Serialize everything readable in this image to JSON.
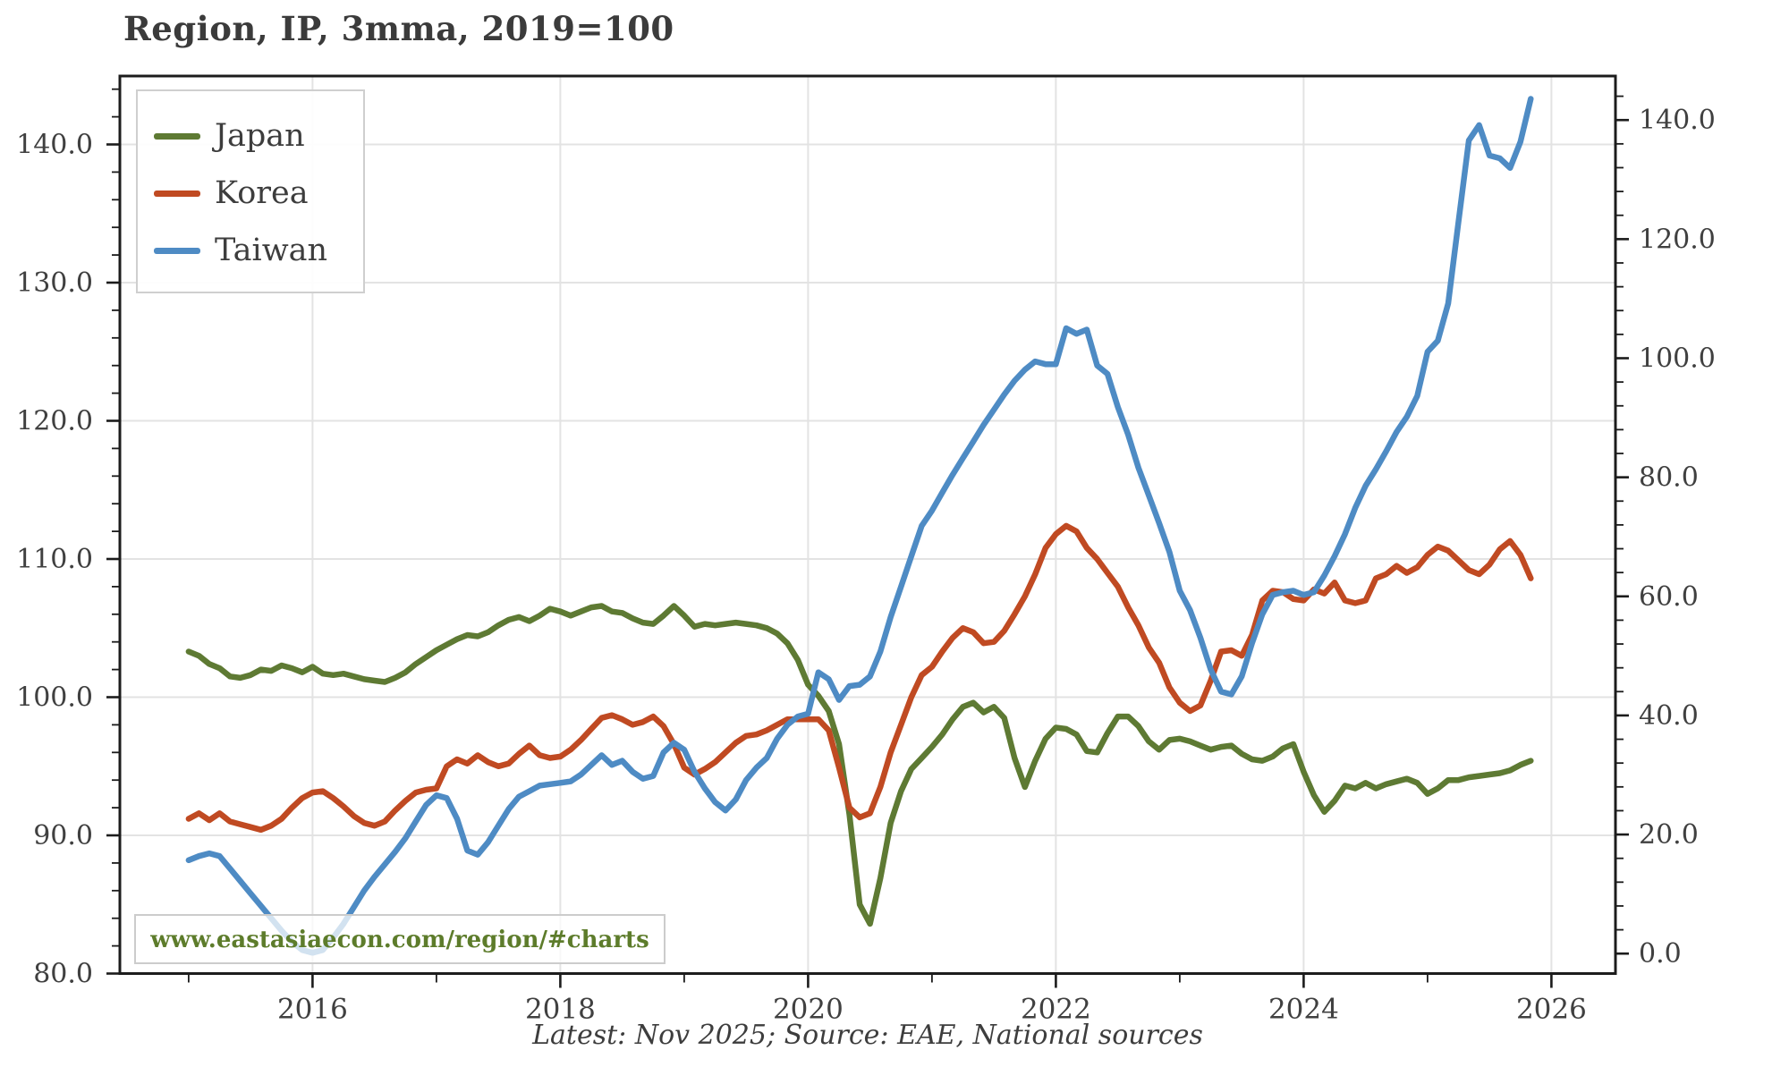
{
  "page": {
    "title": "Region, IP, 3mma, 2019=100",
    "caption": "Latest: Nov 2025; Source: EAE, National sources",
    "watermark": "www.eastasiaecon.com/region/#charts"
  },
  "colors": {
    "japan": "#5e7a33",
    "korea": "#c04a22",
    "taiwan": "#4e8bc4",
    "grid": "#e3e3e3",
    "spine": "#1c1c1c",
    "tick_text": "#404040",
    "watermark_text": "#5d7c2b"
  },
  "chart_data": {
    "type": "line",
    "title": "Region, IP, 3mma, 2019=100",
    "x_axis": {
      "major_tick_years": [
        2016,
        2018,
        2020,
        2022,
        2024,
        2026
      ],
      "major_tick_labels": [
        "2016",
        "2018",
        "2020",
        "2022",
        "2024",
        "2026"
      ],
      "minor_tick_years": [
        2015,
        2017,
        2019,
        2021,
        2023,
        2025
      ],
      "range": [
        2014.44,
        2026.55
      ]
    },
    "left_axis": {
      "ticks": [
        80,
        90,
        100,
        110,
        120,
        130,
        140
      ],
      "labels": [
        "80.0",
        "90.0",
        "100.0",
        "110.0",
        "120.0",
        "130.0",
        "140.0"
      ],
      "minor_step": 2,
      "range": [
        80,
        144.95
      ],
      "grid": true
    },
    "right_axis": {
      "ticks": [
        0,
        20,
        40,
        60,
        80,
        100,
        120,
        140
      ],
      "labels": [
        "0.0",
        "20.0",
        "40.0",
        "60.0",
        "80.0",
        "100.0",
        "120.0",
        "140.0"
      ],
      "minor_step": 4,
      "range": [
        -3.3,
        147.4
      ],
      "grid": false
    },
    "series_start": {
      "year": 2015,
      "month": 1
    },
    "frequency": "monthly",
    "last_point": "Nov 2025",
    "series": [
      {
        "name": "Japan",
        "color_key": "japan",
        "values": [
          103.3,
          103.0,
          102.4,
          102.1,
          101.5,
          101.4,
          101.6,
          102.0,
          101.9,
          102.3,
          102.1,
          101.8,
          102.2,
          101.7,
          101.6,
          101.7,
          101.5,
          101.3,
          101.2,
          101.1,
          101.4,
          101.8,
          102.4,
          102.9,
          103.4,
          103.8,
          104.2,
          104.5,
          104.4,
          104.7,
          105.2,
          105.6,
          105.8,
          105.5,
          105.9,
          106.4,
          106.2,
          105.9,
          106.2,
          106.5,
          106.6,
          106.2,
          106.1,
          105.7,
          105.4,
          105.3,
          105.9,
          106.6,
          105.9,
          105.1,
          105.3,
          105.2,
          105.3,
          105.4,
          105.3,
          105.2,
          105.0,
          104.6,
          103.9,
          102.7,
          100.9,
          100.1,
          99.0,
          96.6,
          91.5,
          85.0,
          83.6,
          86.9,
          90.9,
          93.2,
          94.8,
          95.6,
          96.4,
          97.3,
          98.4,
          99.3,
          99.6,
          98.9,
          99.3,
          98.5,
          95.6,
          93.5,
          95.4,
          97.0,
          97.8,
          97.7,
          97.3,
          96.1,
          96.0,
          97.4,
          98.6,
          98.6,
          97.9,
          96.8,
          96.2,
          96.9,
          97.0,
          96.8,
          96.5,
          96.2,
          96.4,
          96.5,
          95.9,
          95.5,
          95.4,
          95.7,
          96.3,
          96.6,
          94.6,
          92.9,
          91.7,
          92.5,
          93.6,
          93.4,
          93.8,
          93.4,
          93.7,
          93.9,
          94.1,
          93.8,
          93.0,
          93.4,
          94.0,
          94.0,
          94.2,
          94.3,
          94.4,
          94.5,
          94.7,
          95.1,
          95.4
        ]
      },
      {
        "name": "Korea",
        "color_key": "korea",
        "values": [
          91.2,
          91.6,
          91.1,
          91.6,
          91.0,
          90.8,
          90.6,
          90.4,
          90.7,
          91.2,
          92.0,
          92.7,
          93.1,
          93.2,
          92.7,
          92.1,
          91.4,
          90.9,
          90.7,
          91.0,
          91.8,
          92.5,
          93.1,
          93.3,
          93.4,
          95.0,
          95.5,
          95.2,
          95.8,
          95.3,
          95.0,
          95.2,
          95.9,
          96.5,
          95.8,
          95.6,
          95.7,
          96.2,
          96.9,
          97.7,
          98.5,
          98.7,
          98.4,
          98.0,
          98.2,
          98.6,
          97.9,
          96.6,
          94.9,
          94.4,
          94.8,
          95.3,
          96.0,
          96.7,
          97.2,
          97.3,
          97.6,
          98.0,
          98.4,
          98.4,
          98.4,
          98.4,
          97.6,
          94.9,
          92.0,
          91.3,
          91.6,
          93.5,
          96.0,
          98.0,
          100.0,
          101.6,
          102.2,
          103.3,
          104.3,
          105.0,
          104.7,
          103.9,
          104.0,
          104.8,
          106.0,
          107.3,
          108.9,
          110.8,
          111.8,
          112.4,
          112.0,
          110.8,
          110.0,
          109.0,
          108.0,
          106.5,
          105.2,
          103.6,
          102.5,
          100.7,
          99.6,
          99.0,
          99.4,
          101.2,
          103.3,
          103.4,
          103.0,
          104.5,
          107.0,
          107.7,
          107.6,
          107.1,
          107.0,
          107.8,
          107.5,
          108.3,
          107.0,
          106.8,
          107.0,
          108.6,
          108.9,
          109.5,
          109.0,
          109.4,
          110.3,
          110.9,
          110.6,
          109.9,
          109.2,
          108.9,
          109.6,
          110.7,
          111.3,
          110.3,
          108.6
        ]
      },
      {
        "name": "Taiwan",
        "color_key": "taiwan",
        "values": [
          88.2,
          88.5,
          88.7,
          88.5,
          87.6,
          86.7,
          85.8,
          84.9,
          84.0,
          83.1,
          82.3,
          81.7,
          81.5,
          81.7,
          82.6,
          83.6,
          84.8,
          86.0,
          87.0,
          87.9,
          88.8,
          89.8,
          91.0,
          92.2,
          92.9,
          92.7,
          91.2,
          88.9,
          88.6,
          89.5,
          90.7,
          91.9,
          92.8,
          93.2,
          93.6,
          93.7,
          93.8,
          93.9,
          94.4,
          95.1,
          95.8,
          95.1,
          95.4,
          94.6,
          94.1,
          94.3,
          96.0,
          96.7,
          96.2,
          94.6,
          93.4,
          92.4,
          91.8,
          92.6,
          94.0,
          94.9,
          95.6,
          97.0,
          98.0,
          98.6,
          98.8,
          101.8,
          101.3,
          99.8,
          100.8,
          100.9,
          101.5,
          103.3,
          105.8,
          108.0,
          110.2,
          112.4,
          113.5,
          114.8,
          116.1,
          117.3,
          118.5,
          119.7,
          120.8,
          121.9,
          122.9,
          123.7,
          124.3,
          124.1,
          124.1,
          126.7,
          126.3,
          126.6,
          124.0,
          123.4,
          121.0,
          119.0,
          116.6,
          114.6,
          112.6,
          110.5,
          107.7,
          106.3,
          104.3,
          102.0,
          100.4,
          100.2,
          101.5,
          103.9,
          106.0,
          107.4,
          107.6,
          107.7,
          107.4,
          107.6,
          108.8,
          110.2,
          111.8,
          113.7,
          115.3,
          116.5,
          117.8,
          119.2,
          120.3,
          121.8,
          125.0,
          125.8,
          128.5,
          134.4,
          140.3,
          141.4,
          139.2,
          139.0,
          138.3,
          140.2,
          143.3
        ]
      }
    ],
    "legend_position": "top-left"
  }
}
